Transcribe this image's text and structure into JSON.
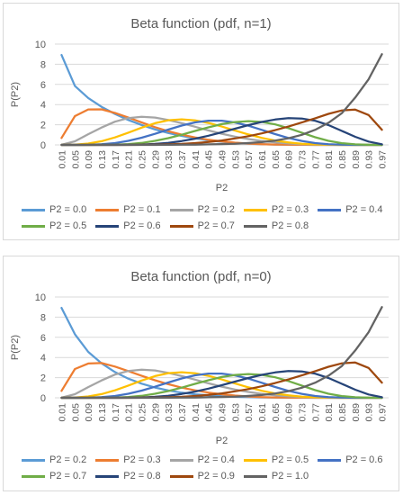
{
  "charts": [
    {
      "title": "Beta function (pdf, n=1)",
      "legend_rows": [
        [
          {
            "name": "P2 = 0.0",
            "color": "#5B9BD5"
          },
          {
            "name": "P2 = 0.1",
            "color": "#ED7D31"
          },
          {
            "name": "P2 = 0.2",
            "color": "#A5A5A5"
          },
          {
            "name": "P2 = 0.3",
            "color": "#FFC000"
          },
          {
            "name": "P2 = 0.4",
            "color": "#4472C4"
          }
        ],
        [
          {
            "name": "P2 = 0.5",
            "color": "#70AD47"
          },
          {
            "name": "P2 = 0.6",
            "color": "#264478"
          },
          {
            "name": "P2 = 0.7",
            "color": "#9E480E"
          },
          {
            "name": "P2 = 0.8",
            "color": "#636363"
          }
        ]
      ]
    },
    {
      "title": "Beta function (pdf, n=0)",
      "legend_rows": [
        [
          {
            "name": "P2 = 0.2",
            "color": "#5B9BD5"
          },
          {
            "name": "P2 = 0.3",
            "color": "#ED7D31"
          },
          {
            "name": "P2 = 0.4",
            "color": "#A5A5A5"
          },
          {
            "name": "P2 = 0.5",
            "color": "#FFC000"
          },
          {
            "name": "P2 = 0.6",
            "color": "#4472C4"
          }
        ],
        [
          {
            "name": "P2 = 0.7",
            "color": "#70AD47"
          },
          {
            "name": "P2 = 0.8",
            "color": "#264478"
          },
          {
            "name": "P2 = 0.9",
            "color": "#9E480E"
          },
          {
            "name": "P2 = 1.0",
            "color": "#636363"
          }
        ]
      ]
    }
  ],
  "chart_data": [
    {
      "type": "line",
      "title": "Beta function (pdf, n=1)",
      "xlabel": "P2",
      "ylabel": "P(P2)",
      "ylim": [
        0,
        10
      ],
      "yticks": [
        0,
        2,
        4,
        6,
        8,
        10
      ],
      "grid": true,
      "legend": "bottom",
      "x": [
        0.01,
        0.05,
        0.09,
        0.13,
        0.17,
        0.21,
        0.25,
        0.29,
        0.33,
        0.37,
        0.41,
        0.45,
        0.49,
        0.53,
        0.57,
        0.61,
        0.65,
        0.69,
        0.73,
        0.77,
        0.81,
        0.85,
        0.89,
        0.93,
        0.97
      ],
      "series": [
        {
          "name": "P2 = 0.0",
          "color": "#5B9BD5",
          "values": [
            8.92,
            5.84,
            4.65,
            3.78,
            3.07,
            2.47,
            1.97,
            1.54,
            1.18,
            0.89,
            0.65,
            0.45,
            0.31,
            0.2,
            0.12,
            0.07,
            0.04,
            0.02,
            0.01,
            0.0,
            0.0,
            0.0,
            0.0,
            0.0,
            0.0
          ]
        },
        {
          "name": "P2 = 0.1",
          "color": "#ED7D31",
          "values": [
            0.69,
            2.86,
            3.52,
            3.53,
            3.17,
            2.71,
            2.22,
            1.76,
            1.36,
            1.02,
            0.74,
            0.51,
            0.35,
            0.22,
            0.13,
            0.07,
            0.04,
            0.02,
            0.01,
            0.0,
            0.0,
            0.0,
            0.0,
            0.0,
            0.0
          ]
        },
        {
          "name": "P2 = 0.2",
          "color": "#A5A5A5",
          "values": [
            0.02,
            0.36,
            1.06,
            1.72,
            2.3,
            2.66,
            2.79,
            2.71,
            2.47,
            2.15,
            1.8,
            1.44,
            1.11,
            0.82,
            0.58,
            0.39,
            0.24,
            0.14,
            0.07,
            0.03,
            0.01,
            0.0,
            0.0,
            0.0,
            0.0
          ]
        },
        {
          "name": "P2 = 0.3",
          "color": "#FFC000",
          "values": [
            0.0,
            0.02,
            0.13,
            0.37,
            0.74,
            1.21,
            1.71,
            2.15,
            2.45,
            2.54,
            2.44,
            2.18,
            1.82,
            1.42,
            1.04,
            0.7,
            0.43,
            0.24,
            0.12,
            0.05,
            0.02,
            0.0,
            0.0,
            0.0,
            0.0
          ]
        },
        {
          "name": "P2 = 0.4",
          "color": "#4472C4",
          "values": [
            0.0,
            0.0,
            0.01,
            0.06,
            0.18,
            0.4,
            0.71,
            1.1,
            1.52,
            1.92,
            2.23,
            2.4,
            2.4,
            2.22,
            1.9,
            1.49,
            1.07,
            0.69,
            0.39,
            0.18,
            0.07,
            0.02,
            0.0,
            0.0,
            0.0
          ]
        },
        {
          "name": "P2 = 0.5",
          "color": "#70AD47",
          "values": [
            0.0,
            0.0,
            0.0,
            0.01,
            0.03,
            0.08,
            0.2,
            0.4,
            0.67,
            1.01,
            1.38,
            1.74,
            2.06,
            2.27,
            2.36,
            2.28,
            2.04,
            1.66,
            1.21,
            0.76,
            0.4,
            0.17,
            0.05,
            0.01,
            0.0
          ]
        },
        {
          "name": "P2 = 0.6",
          "color": "#264478",
          "values": [
            0.0,
            0.0,
            0.0,
            0.0,
            0.0,
            0.01,
            0.04,
            0.1,
            0.2,
            0.38,
            0.62,
            0.91,
            1.25,
            1.61,
            1.96,
            2.28,
            2.52,
            2.65,
            2.62,
            2.39,
            1.96,
            1.38,
            0.8,
            0.33,
            0.06
          ]
        },
        {
          "name": "P2 = 0.7",
          "color": "#9E480E",
          "values": [
            0.0,
            0.0,
            0.0,
            0.0,
            0.0,
            0.0,
            0.01,
            0.02,
            0.05,
            0.1,
            0.18,
            0.29,
            0.44,
            0.64,
            0.87,
            1.14,
            1.46,
            1.82,
            2.22,
            2.64,
            3.08,
            3.42,
            3.5,
            2.96,
            1.5
          ]
        },
        {
          "name": "P2 = 0.8",
          "color": "#636363",
          "values": [
            0.0,
            0.0,
            0.0,
            0.0,
            0.0,
            0.0,
            0.0,
            0.0,
            0.01,
            0.02,
            0.03,
            0.05,
            0.08,
            0.12,
            0.19,
            0.28,
            0.43,
            0.66,
            1.0,
            1.5,
            2.2,
            3.15,
            4.7,
            6.5,
            9.0
          ]
        }
      ]
    },
    {
      "type": "line",
      "title": "Beta function (pdf, n=0)",
      "xlabel": "P2",
      "ylabel": "P(P2)",
      "ylim": [
        0,
        10
      ],
      "yticks": [
        0,
        2,
        4,
        6,
        8,
        10
      ],
      "grid": true,
      "legend": "bottom",
      "x": [
        0.01,
        0.05,
        0.09,
        0.13,
        0.17,
        0.21,
        0.25,
        0.29,
        0.33,
        0.37,
        0.41,
        0.45,
        0.49,
        0.53,
        0.57,
        0.61,
        0.65,
        0.69,
        0.73,
        0.77,
        0.81,
        0.85,
        0.89,
        0.93,
        0.97
      ],
      "series": [
        {
          "name": "P2 = 0.2",
          "color": "#5B9BD5",
          "values": [
            8.92,
            6.3,
            4.55,
            3.42,
            2.55,
            1.9,
            1.4,
            1.02,
            0.73,
            0.51,
            0.35,
            0.24,
            0.16,
            0.1,
            0.06,
            0.04,
            0.02,
            0.01,
            0.01,
            0.0,
            0.0,
            0.0,
            0.0,
            0.0,
            0.0
          ]
        },
        {
          "name": "P2 = 0.3",
          "color": "#ED7D31",
          "values": [
            0.69,
            2.86,
            3.4,
            3.45,
            3.1,
            2.65,
            2.18,
            1.74,
            1.35,
            1.01,
            0.74,
            0.52,
            0.35,
            0.22,
            0.13,
            0.07,
            0.04,
            0.02,
            0.01,
            0.0,
            0.0,
            0.0,
            0.0,
            0.0,
            0.0
          ]
        },
        {
          "name": "P2 = 0.4",
          "color": "#A5A5A5",
          "values": [
            0.02,
            0.36,
            1.06,
            1.72,
            2.3,
            2.66,
            2.79,
            2.71,
            2.47,
            2.15,
            1.8,
            1.44,
            1.11,
            0.82,
            0.58,
            0.39,
            0.24,
            0.14,
            0.07,
            0.03,
            0.01,
            0.0,
            0.0,
            0.0,
            0.0
          ]
        },
        {
          "name": "P2 = 0.5",
          "color": "#FFC000",
          "values": [
            0.0,
            0.02,
            0.13,
            0.37,
            0.74,
            1.21,
            1.71,
            2.15,
            2.45,
            2.54,
            2.44,
            2.18,
            1.82,
            1.42,
            1.04,
            0.7,
            0.43,
            0.24,
            0.12,
            0.05,
            0.02,
            0.0,
            0.0,
            0.0,
            0.0
          ]
        },
        {
          "name": "P2 = 0.6",
          "color": "#4472C4",
          "values": [
            0.0,
            0.0,
            0.01,
            0.06,
            0.18,
            0.4,
            0.71,
            1.1,
            1.52,
            1.92,
            2.23,
            2.4,
            2.4,
            2.22,
            1.9,
            1.49,
            1.07,
            0.69,
            0.39,
            0.18,
            0.07,
            0.02,
            0.0,
            0.0,
            0.0
          ]
        },
        {
          "name": "P2 = 0.7",
          "color": "#70AD47",
          "values": [
            0.0,
            0.0,
            0.0,
            0.01,
            0.03,
            0.08,
            0.2,
            0.4,
            0.67,
            1.01,
            1.38,
            1.74,
            2.06,
            2.27,
            2.36,
            2.28,
            2.04,
            1.66,
            1.21,
            0.76,
            0.4,
            0.17,
            0.05,
            0.01,
            0.0
          ]
        },
        {
          "name": "P2 = 0.8",
          "color": "#264478",
          "values": [
            0.0,
            0.0,
            0.0,
            0.0,
            0.0,
            0.01,
            0.04,
            0.1,
            0.2,
            0.38,
            0.62,
            0.91,
            1.25,
            1.61,
            1.96,
            2.28,
            2.52,
            2.65,
            2.62,
            2.39,
            1.96,
            1.38,
            0.8,
            0.33,
            0.06
          ]
        },
        {
          "name": "P2 = 0.9",
          "color": "#9E480E",
          "values": [
            0.0,
            0.0,
            0.0,
            0.0,
            0.0,
            0.0,
            0.01,
            0.02,
            0.05,
            0.1,
            0.18,
            0.29,
            0.44,
            0.64,
            0.87,
            1.14,
            1.46,
            1.82,
            2.22,
            2.64,
            3.08,
            3.42,
            3.5,
            2.96,
            1.5
          ]
        },
        {
          "name": "P2 = 1.0",
          "color": "#636363",
          "values": [
            0.0,
            0.0,
            0.0,
            0.0,
            0.0,
            0.0,
            0.0,
            0.0,
            0.01,
            0.02,
            0.03,
            0.05,
            0.08,
            0.12,
            0.19,
            0.28,
            0.43,
            0.66,
            1.0,
            1.5,
            2.2,
            3.15,
            4.7,
            6.5,
            9.0
          ]
        }
      ]
    }
  ]
}
